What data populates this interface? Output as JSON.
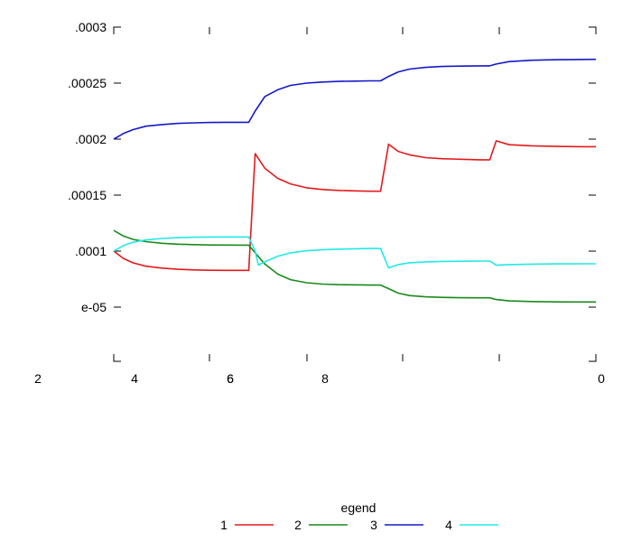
{
  "chart_data": {
    "type": "line",
    "title": "",
    "xlabel": "",
    "ylabel": "",
    "x_tick_labels": [
      "2",
      "4",
      "6",
      "6",
      "8",
      "0"
    ],
    "y_tick_labels": [
      ".0003",
      ".00025",
      ".0002",
      ".00015",
      ".0001",
      "e-05"
    ],
    "legend_title": "egend",
    "legend_position": "bottom-center",
    "grid": false,
    "series": [
      {
        "name": "1",
        "color": "#e31a1c",
        "points": [
          [
            0,
            0.0001
          ],
          [
            0.3,
            9.35e-05
          ],
          [
            0.6,
            8.95e-05
          ],
          [
            1.0,
            8.65e-05
          ],
          [
            1.5,
            8.48e-05
          ],
          [
            2.0,
            8.38e-05
          ],
          [
            2.5,
            8.32e-05
          ],
          [
            3.0,
            8.29e-05
          ],
          [
            3.5,
            8.28e-05
          ],
          [
            4.2,
            8.28e-05
          ],
          [
            4.4,
            0.000187
          ],
          [
            4.7,
            0.000174
          ],
          [
            5.1,
            0.000165
          ],
          [
            5.5,
            0.00016
          ],
          [
            6.0,
            0.0001565
          ],
          [
            6.5,
            0.000155
          ],
          [
            7.0,
            0.0001542
          ],
          [
            7.5,
            0.0001538
          ],
          [
            8.0,
            0.0001535
          ],
          [
            8.3,
            0.0001535
          ],
          [
            8.55,
            0.0001955
          ],
          [
            8.85,
            0.000189
          ],
          [
            9.2,
            0.000186
          ],
          [
            9.7,
            0.0001835
          ],
          [
            10.2,
            0.0001825
          ],
          [
            10.8,
            0.000182
          ],
          [
            11.4,
            0.0001815
          ],
          [
            11.7,
            0.0001815
          ],
          [
            11.9,
            0.0001985
          ],
          [
            12.3,
            0.000195
          ],
          [
            13.0,
            0.000194
          ],
          [
            13.8,
            0.0001935
          ],
          [
            14.6,
            0.0001932
          ],
          [
            15.0,
            0.0001932
          ]
        ]
      },
      {
        "name": "2",
        "color": "#1a8a1a",
        "points": [
          [
            0,
            0.0001185
          ],
          [
            0.3,
            0.0001135
          ],
          [
            0.6,
            0.0001105
          ],
          [
            1.0,
            0.0001085
          ],
          [
            1.5,
            0.000107
          ],
          [
            2.0,
            0.0001062
          ],
          [
            2.5,
            0.0001058
          ],
          [
            3.0,
            0.0001055
          ],
          [
            3.5,
            0.0001054
          ],
          [
            4.2,
            0.0001053
          ],
          [
            4.4,
            9.85e-05
          ],
          [
            4.7,
            8.85e-05
          ],
          [
            5.1,
            7.95e-05
          ],
          [
            5.5,
            7.45e-05
          ],
          [
            6.0,
            7.18e-05
          ],
          [
            6.5,
            7.06e-05
          ],
          [
            7.0,
            7.01e-05
          ],
          [
            7.5,
            6.99e-05
          ],
          [
            8.0,
            6.97e-05
          ],
          [
            8.3,
            6.97e-05
          ],
          [
            8.55,
            6.65e-05
          ],
          [
            8.85,
            6.25e-05
          ],
          [
            9.2,
            6.03e-05
          ],
          [
            9.7,
            5.92e-05
          ],
          [
            10.2,
            5.87e-05
          ],
          [
            10.8,
            5.84e-05
          ],
          [
            11.4,
            5.83e-05
          ],
          [
            11.7,
            5.83e-05
          ],
          [
            11.9,
            5.68e-05
          ],
          [
            12.3,
            5.56e-05
          ],
          [
            13.0,
            5.5e-05
          ],
          [
            13.8,
            5.47e-05
          ],
          [
            14.6,
            5.46e-05
          ],
          [
            15.0,
            5.46e-05
          ]
        ]
      },
      {
        "name": "3",
        "color": "#1518c8",
        "points": [
          [
            0,
            0.0002
          ],
          [
            0.3,
            0.000205
          ],
          [
            0.6,
            0.0002085
          ],
          [
            1.0,
            0.0002115
          ],
          [
            1.5,
            0.000213
          ],
          [
            2.0,
            0.000214
          ],
          [
            2.5,
            0.0002145
          ],
          [
            3.0,
            0.0002148
          ],
          [
            3.5,
            0.000215
          ],
          [
            4.2,
            0.000215
          ],
          [
            4.4,
            0.000225
          ],
          [
            4.7,
            0.000238
          ],
          [
            5.1,
            0.000244
          ],
          [
            5.5,
            0.000248
          ],
          [
            6.0,
            0.00025
          ],
          [
            6.5,
            0.000251
          ],
          [
            7.0,
            0.0002515
          ],
          [
            7.5,
            0.0002518
          ],
          [
            8.0,
            0.000252
          ],
          [
            8.3,
            0.000252
          ],
          [
            8.55,
            0.000256
          ],
          [
            8.85,
            0.00026
          ],
          [
            9.2,
            0.0002625
          ],
          [
            9.7,
            0.000264
          ],
          [
            10.2,
            0.0002648
          ],
          [
            10.8,
            0.0002652
          ],
          [
            11.4,
            0.0002654
          ],
          [
            11.7,
            0.0002654
          ],
          [
            11.9,
            0.000267
          ],
          [
            12.3,
            0.0002692
          ],
          [
            13.0,
            0.0002704
          ],
          [
            13.8,
            0.0002709
          ],
          [
            14.6,
            0.0002711
          ],
          [
            15.0,
            0.0002712
          ]
        ]
      },
      {
        "name": "4",
        "color": "#22e8e8",
        "points": [
          [
            0,
            0.0001
          ],
          [
            0.3,
            0.000105
          ],
          [
            0.6,
            0.000108
          ],
          [
            1.0,
            0.00011
          ],
          [
            1.5,
            0.0001113
          ],
          [
            2.0,
            0.000112
          ],
          [
            2.5,
            0.0001124
          ],
          [
            3.0,
            0.0001126
          ],
          [
            3.5,
            0.0001127
          ],
          [
            4.2,
            0.0001127
          ],
          [
            4.4,
            0.0001
          ],
          [
            4.5,
            8.75e-05
          ],
          [
            4.7,
            9.05e-05
          ],
          [
            5.1,
            9.55e-05
          ],
          [
            5.5,
            9.85e-05
          ],
          [
            6.0,
            0.0001003
          ],
          [
            6.5,
            0.0001013
          ],
          [
            7.0,
            0.0001018
          ],
          [
            7.5,
            0.0001021
          ],
          [
            8.0,
            0.0001023
          ],
          [
            8.3,
            0.0001023
          ],
          [
            8.55,
            8.5e-05
          ],
          [
            8.85,
            8.8e-05
          ],
          [
            9.2,
            8.96e-05
          ],
          [
            9.7,
            9.04e-05
          ],
          [
            10.2,
            9.08e-05
          ],
          [
            10.8,
            9.1e-05
          ],
          [
            11.4,
            9.11e-05
          ],
          [
            11.7,
            9.11e-05
          ],
          [
            11.9,
            8.74e-05
          ],
          [
            12.3,
            8.8e-05
          ],
          [
            13.0,
            8.84e-05
          ],
          [
            13.8,
            8.86e-05
          ],
          [
            14.6,
            8.87e-05
          ],
          [
            15.0,
            8.87e-05
          ]
        ]
      }
    ]
  }
}
